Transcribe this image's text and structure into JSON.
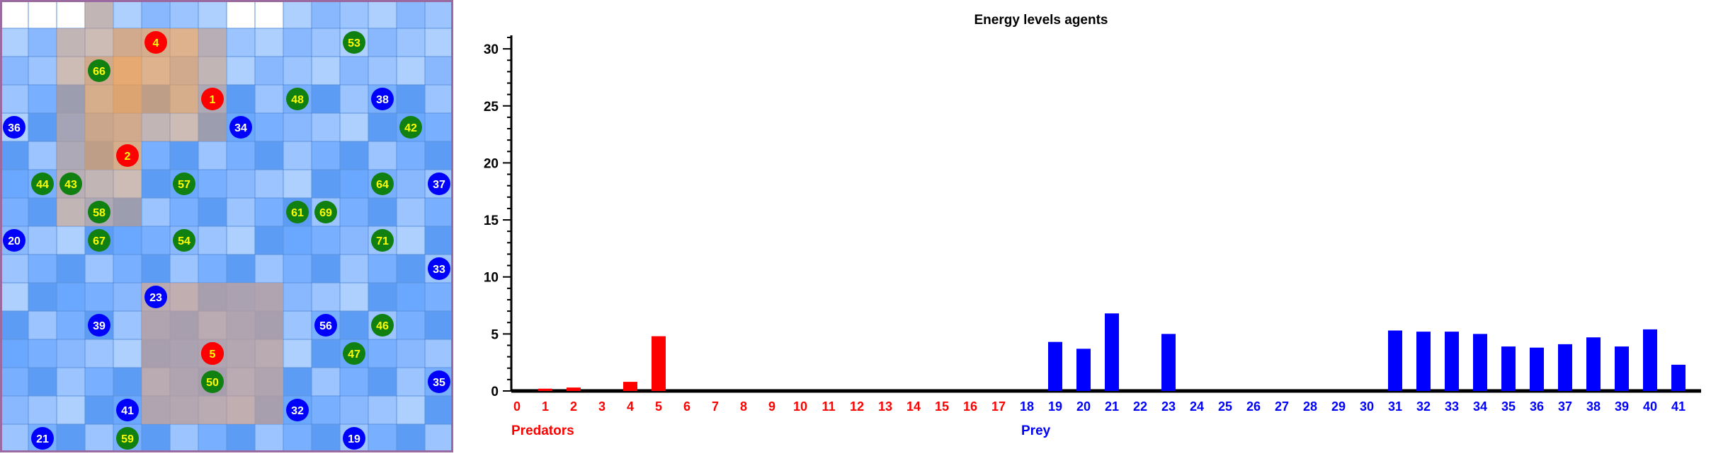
{
  "grid": {
    "size": 16,
    "overlay_colors": {
      "predator_zone": "#f7a050",
      "trap_zone": "#c8a090",
      "border": "#9b6aa0"
    },
    "agents": [
      {
        "id": "4",
        "type": "predator",
        "col": 5,
        "row": 1
      },
      {
        "id": "1",
        "type": "predator",
        "col": 7,
        "row": 3
      },
      {
        "id": "2",
        "type": "predator",
        "col": 4,
        "row": 5
      },
      {
        "id": "0",
        "type": "predator",
        "col": 7,
        "row": 12
      },
      {
        "id": "3",
        "type": "predator",
        "col": 7,
        "row": 12
      },
      {
        "id": "5",
        "type": "predator",
        "col": 7,
        "row": 12
      },
      {
        "id": "53",
        "type": "plant",
        "col": 12,
        "row": 1
      },
      {
        "id": "66",
        "type": "plant",
        "col": 3,
        "row": 2
      },
      {
        "id": "48",
        "type": "plant",
        "col": 10,
        "row": 3
      },
      {
        "id": "38",
        "type": "prey",
        "col": 13,
        "row": 3
      },
      {
        "id": "36",
        "type": "prey",
        "col": 0,
        "row": 4
      },
      {
        "id": "34",
        "type": "prey",
        "col": 8,
        "row": 4
      },
      {
        "id": "42",
        "type": "plant",
        "col": 14,
        "row": 4
      },
      {
        "id": "44",
        "type": "plant",
        "col": 1,
        "row": 6
      },
      {
        "id": "43",
        "type": "plant",
        "col": 2,
        "row": 6
      },
      {
        "id": "57",
        "type": "plant",
        "col": 6,
        "row": 6
      },
      {
        "id": "64",
        "type": "plant",
        "col": 13,
        "row": 6
      },
      {
        "id": "37",
        "type": "prey",
        "col": 15,
        "row": 6
      },
      {
        "id": "58",
        "type": "plant",
        "col": 3,
        "row": 7
      },
      {
        "id": "61",
        "type": "plant",
        "col": 10,
        "row": 7
      },
      {
        "id": "69",
        "type": "plant",
        "col": 11,
        "row": 7
      },
      {
        "id": "20",
        "type": "prey",
        "col": 0,
        "row": 8
      },
      {
        "id": "67",
        "type": "plant",
        "col": 3,
        "row": 8
      },
      {
        "id": "54",
        "type": "plant",
        "col": 6,
        "row": 8
      },
      {
        "id": "71",
        "type": "plant",
        "col": 13,
        "row": 8
      },
      {
        "id": "33",
        "type": "prey",
        "col": 15,
        "row": 9
      },
      {
        "id": "23",
        "type": "prey",
        "col": 5,
        "row": 10
      },
      {
        "id": "39",
        "type": "prey",
        "col": 3,
        "row": 11
      },
      {
        "id": "56",
        "type": "prey",
        "col": 11,
        "row": 11
      },
      {
        "id": "46",
        "type": "plant",
        "col": 13,
        "row": 11
      },
      {
        "id": "47",
        "type": "plant",
        "col": 12,
        "row": 12
      },
      {
        "id": "50",
        "type": "plant",
        "col": 7,
        "row": 13
      },
      {
        "id": "35",
        "type": "prey",
        "col": 15,
        "row": 13
      },
      {
        "id": "41",
        "type": "prey",
        "col": 4,
        "row": 14
      },
      {
        "id": "32",
        "type": "prey",
        "col": 10,
        "row": 14
      },
      {
        "id": "21",
        "type": "prey",
        "col": 1,
        "row": 15
      },
      {
        "id": "59",
        "type": "plant",
        "col": 4,
        "row": 15
      },
      {
        "id": "19",
        "type": "prey",
        "col": 12,
        "row": 15
      }
    ]
  },
  "chart_data": {
    "type": "bar",
    "title": "Energy levels agents",
    "xlabel": "",
    "ylabel": "",
    "ylim": [
      0,
      31
    ],
    "yticks": [
      0,
      5,
      10,
      15,
      20,
      25,
      30
    ],
    "grid": false,
    "categories": [
      "0",
      "1",
      "2",
      "3",
      "4",
      "5",
      "6",
      "7",
      "8",
      "9",
      "10",
      "11",
      "12",
      "13",
      "14",
      "15",
      "16",
      "17",
      "18",
      "19",
      "20",
      "21",
      "22",
      "23",
      "24",
      "25",
      "26",
      "27",
      "28",
      "29",
      "30",
      "31",
      "32",
      "33",
      "34",
      "35",
      "36",
      "37",
      "38",
      "39",
      "40",
      "41"
    ],
    "values": [
      0,
      0.2,
      0.3,
      0,
      0.8,
      4.8,
      0,
      0,
      0,
      0,
      0,
      0,
      0,
      0,
      0,
      0,
      0,
      0,
      0,
      4.3,
      3.7,
      6.8,
      0,
      5.0,
      0,
      0,
      0,
      0,
      0,
      0,
      0,
      5.3,
      5.2,
      5.2,
      5.0,
      3.9,
      3.8,
      4.1,
      4.7,
      3.9,
      5.4,
      2.3
    ],
    "group_labels": [
      {
        "label": "Predators",
        "color": "#ff0000",
        "range": [
          0,
          17
        ]
      },
      {
        "label": "Prey",
        "color": "#0000ff",
        "range": [
          18,
          41
        ]
      }
    ],
    "colors": {
      "predator": "#ff0000",
      "prey": "#0000ff"
    }
  }
}
